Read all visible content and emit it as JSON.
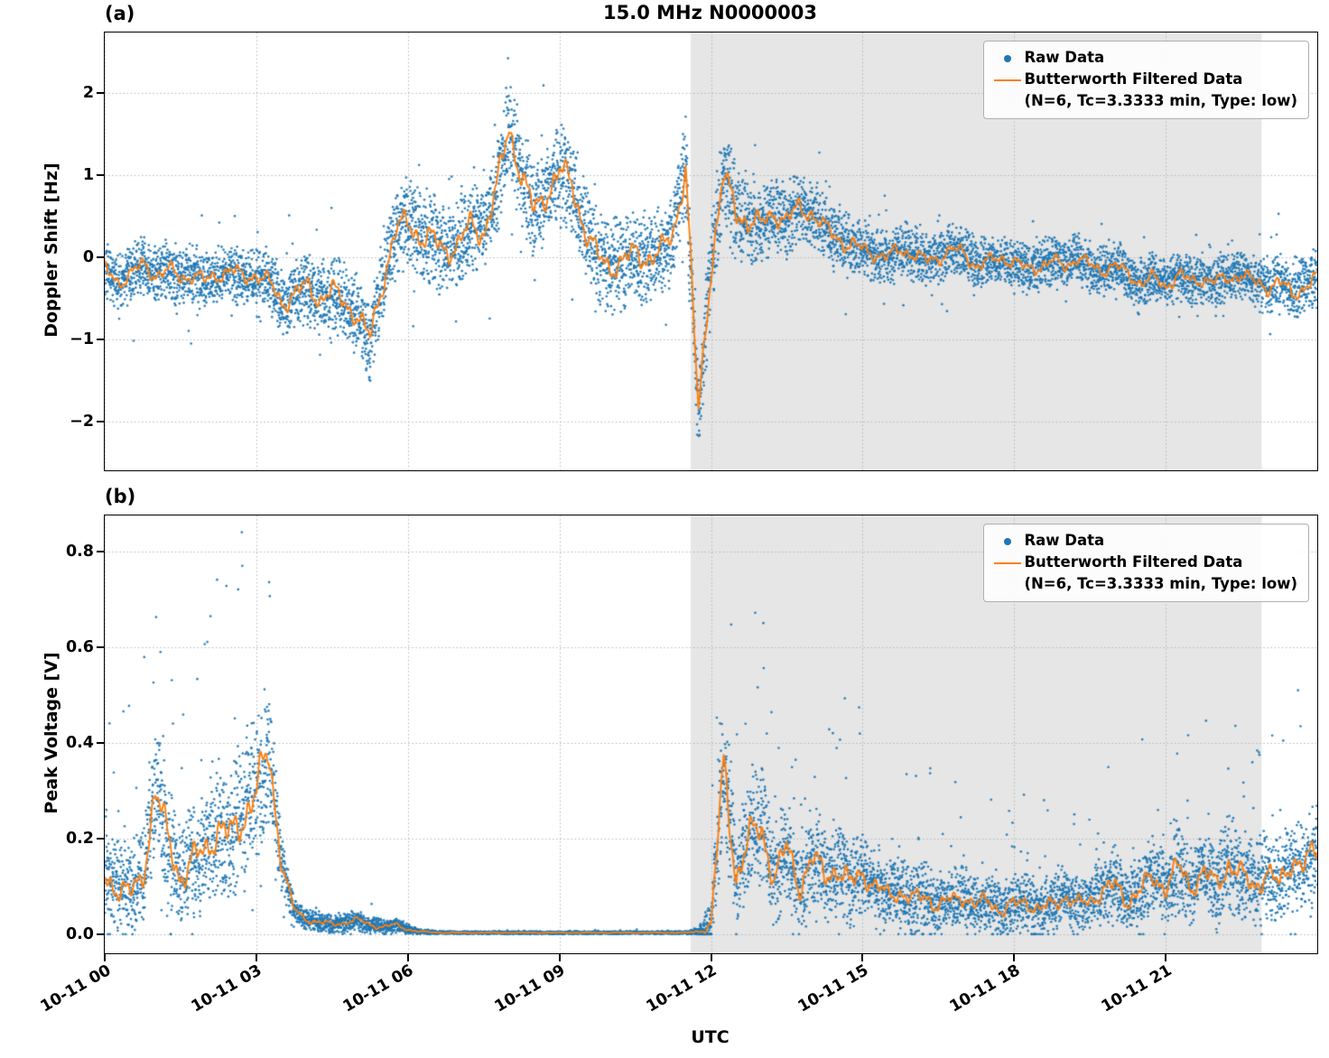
{
  "figure": {
    "title": "15.0 MHz N0000003",
    "xlabel": "UTC",
    "panel_a_tag": "(a)",
    "panel_b_tag": "(b)"
  },
  "legend": {
    "raw_label": "Raw Data",
    "filtered_label": "Butterworth Filtered Data",
    "filtered_sublabel": "(N=6, Tc=3.3333 min, Type: low)"
  },
  "colors": {
    "raw": "#1f77b4",
    "filtered": "#ff7f0e",
    "shade": "#e6e6e6",
    "grid": "#b5b5b5",
    "spine": "#000000"
  },
  "chart_data": [
    {
      "type": "scatter+line",
      "panel": "a",
      "title": "15.0 MHz N0000003",
      "ylabel": "Doppler Shift [Hz]",
      "xlabel": "UTC",
      "xlim": [
        0,
        24
      ],
      "ylim": [
        -2.59,
        2.74
      ],
      "x_tick_values": [
        0,
        3,
        6,
        9,
        12,
        15,
        18,
        21
      ],
      "x_tick_labels": [
        "10-11 00",
        "10-11 03",
        "10-11 06",
        "10-11 09",
        "10-11 12",
        "10-11 15",
        "10-11 18",
        "10-11 21"
      ],
      "y_tick_values": [
        -2,
        -1,
        0,
        1,
        2
      ],
      "y_tick_labels": [
        "−2",
        "−1",
        "0",
        "1",
        "2"
      ],
      "shaded_span": [
        11.6,
        22.9
      ],
      "grid": true,
      "legend_position": "upper right",
      "series": [
        {
          "name": "Raw Data",
          "type": "scatter",
          "color": "#1f77b4"
        },
        {
          "name": "Butterworth Filtered Data (N=6, Tc=3.3333 min, Type: low)",
          "type": "line",
          "color": "#ff7f0e"
        }
      ],
      "x_hours": [
        0,
        0.25,
        0.5,
        0.75,
        1,
        1.25,
        1.5,
        1.75,
        2,
        2.25,
        2.5,
        2.75,
        3,
        3.25,
        3.5,
        3.75,
        4,
        4.25,
        4.5,
        4.75,
        5,
        5.25,
        5.5,
        5.75,
        6,
        6.25,
        6.5,
        6.75,
        7,
        7.25,
        7.5,
        7.75,
        8,
        8.25,
        8.5,
        8.75,
        9,
        9.25,
        9.5,
        9.75,
        10,
        10.25,
        10.5,
        10.75,
        11,
        11.25,
        11.5,
        11.75,
        12,
        12.25,
        12.5,
        12.75,
        13,
        13.25,
        13.5,
        13.75,
        14,
        14.25,
        14.5,
        14.75,
        15,
        15.25,
        15.5,
        15.75,
        16,
        16.25,
        16.5,
        16.75,
        17,
        17.25,
        17.5,
        17.75,
        18,
        18.25,
        18.5,
        18.75,
        19,
        19.25,
        19.5,
        19.75,
        20,
        20.25,
        20.5,
        20.75,
        21,
        21.25,
        21.5,
        21.75,
        22,
        22.25,
        22.5,
        22.75,
        23,
        23.25,
        23.5,
        23.75,
        24
      ],
      "filtered_hz": [
        -0.15,
        -0.3,
        -0.2,
        -0.1,
        -0.2,
        -0.15,
        -0.25,
        -0.2,
        -0.3,
        -0.2,
        -0.15,
        -0.25,
        -0.2,
        -0.3,
        -0.55,
        -0.45,
        -0.35,
        -0.5,
        -0.4,
        -0.55,
        -0.7,
        -1.0,
        -0.3,
        0.3,
        0.45,
        0.25,
        0.2,
        0.1,
        0.15,
        0.4,
        0.3,
        0.8,
        1.6,
        1.0,
        0.55,
        0.8,
        1.05,
        0.9,
        0.35,
        0.0,
        -0.1,
        -0.05,
        0.05,
        0.0,
        0.05,
        0.3,
        1.1,
        -1.9,
        -0.1,
        1.0,
        0.55,
        0.45,
        0.4,
        0.55,
        0.45,
        0.6,
        0.55,
        0.35,
        0.25,
        0.15,
        0.1,
        0.05,
        0.0,
        0.1,
        0.05,
        -0.05,
        0.0,
        0.1,
        0.05,
        -0.1,
        -0.05,
        0.0,
        -0.05,
        -0.15,
        -0.1,
        -0.05,
        -0.1,
        0.0,
        -0.1,
        -0.15,
        -0.1,
        -0.2,
        -0.3,
        -0.25,
        -0.35,
        -0.2,
        -0.3,
        -0.25,
        -0.3,
        -0.25,
        -0.2,
        -0.3,
        -0.35,
        -0.3,
        -0.45,
        -0.35,
        -0.25
      ],
      "raw_band_halfwidth_hz": [
        0.35,
        0.35,
        0.35,
        0.35,
        0.35,
        0.35,
        0.35,
        0.35,
        0.35,
        0.35,
        0.35,
        0.35,
        0.35,
        0.35,
        0.45,
        0.45,
        0.45,
        0.45,
        0.45,
        0.45,
        0.5,
        0.55,
        0.5,
        0.55,
        0.55,
        0.55,
        0.55,
        0.55,
        0.55,
        0.55,
        0.55,
        0.6,
        0.6,
        0.6,
        0.6,
        0.6,
        0.6,
        0.6,
        0.6,
        0.55,
        0.55,
        0.55,
        0.55,
        0.55,
        0.55,
        0.55,
        0.6,
        0.5,
        0.6,
        0.55,
        0.6,
        0.55,
        0.45,
        0.45,
        0.45,
        0.45,
        0.4,
        0.4,
        0.4,
        0.4,
        0.32,
        0.32,
        0.32,
        0.32,
        0.32,
        0.32,
        0.32,
        0.32,
        0.3,
        0.3,
        0.3,
        0.3,
        0.3,
        0.3,
        0.3,
        0.3,
        0.3,
        0.3,
        0.3,
        0.3,
        0.3,
        0.3,
        0.3,
        0.3,
        0.3,
        0.3,
        0.3,
        0.3,
        0.3,
        0.3,
        0.3,
        0.3,
        0.35,
        0.35,
        0.35,
        0.35,
        0.35
      ]
    },
    {
      "type": "scatter+line",
      "panel": "b",
      "ylabel": "Peak Voltage [V]",
      "xlabel": "UTC",
      "xlim": [
        0,
        24
      ],
      "ylim": [
        -0.04,
        0.875
      ],
      "value_min": 0,
      "x_tick_values": [
        0,
        3,
        6,
        9,
        12,
        15,
        18,
        21
      ],
      "x_tick_labels": [
        "10-11 00",
        "10-11 03",
        "10-11 06",
        "10-11 09",
        "10-11 12",
        "10-11 15",
        "10-11 18",
        "10-11 21"
      ],
      "y_tick_values": [
        0,
        0.2,
        0.4,
        0.6,
        0.8
      ],
      "y_tick_labels": [
        "0.0",
        "0.2",
        "0.4",
        "0.6",
        "0.8"
      ],
      "shaded_span": [
        11.6,
        22.9
      ],
      "grid": true,
      "legend_position": "upper right",
      "series": [
        {
          "name": "Raw Data",
          "type": "scatter",
          "color": "#1f77b4"
        },
        {
          "name": "Butterworth Filtered Data (N=6, Tc=3.3333 min, Type: low)",
          "type": "line",
          "color": "#ff7f0e"
        }
      ],
      "x_hours": [
        0,
        0.25,
        0.5,
        0.75,
        1,
        1.25,
        1.5,
        1.75,
        2,
        2.25,
        2.5,
        2.75,
        3,
        3.25,
        3.5,
        3.75,
        4,
        4.25,
        4.5,
        4.75,
        5,
        5.25,
        5.5,
        5.75,
        6,
        6.25,
        6.5,
        6.75,
        7,
        7.25,
        7.5,
        7.75,
        8,
        8.25,
        8.5,
        8.75,
        9,
        9.25,
        9.5,
        9.75,
        10,
        10.25,
        10.5,
        10.75,
        11,
        11.25,
        11.5,
        11.75,
        12,
        12.25,
        12.5,
        12.75,
        13,
        13.25,
        13.5,
        13.75,
        14,
        14.25,
        14.5,
        14.75,
        15,
        15.25,
        15.5,
        15.75,
        16,
        16.25,
        16.5,
        16.75,
        17,
        17.25,
        17.5,
        17.75,
        18,
        18.25,
        18.5,
        18.75,
        19,
        19.25,
        19.5,
        19.75,
        20,
        20.25,
        20.5,
        20.75,
        21,
        21.25,
        21.5,
        21.75,
        22,
        22.25,
        22.5,
        22.75,
        23,
        23.25,
        23.5,
        23.75,
        24
      ],
      "filtered_v": [
        0.12,
        0.1,
        0.08,
        0.12,
        0.3,
        0.2,
        0.12,
        0.15,
        0.18,
        0.22,
        0.2,
        0.25,
        0.3,
        0.38,
        0.15,
        0.05,
        0.03,
        0.025,
        0.02,
        0.025,
        0.03,
        0.02,
        0.015,
        0.02,
        0.01,
        0.005,
        0.004,
        0.003,
        0.003,
        0.003,
        0.003,
        0.003,
        0.003,
        0.003,
        0.003,
        0.003,
        0.003,
        0.003,
        0.003,
        0.003,
        0.003,
        0.003,
        0.003,
        0.003,
        0.003,
        0.003,
        0.003,
        0.005,
        0.02,
        0.35,
        0.12,
        0.2,
        0.22,
        0.12,
        0.18,
        0.1,
        0.16,
        0.12,
        0.14,
        0.1,
        0.13,
        0.1,
        0.08,
        0.09,
        0.07,
        0.08,
        0.06,
        0.07,
        0.08,
        0.06,
        0.07,
        0.05,
        0.06,
        0.07,
        0.05,
        0.06,
        0.08,
        0.06,
        0.07,
        0.09,
        0.1,
        0.07,
        0.09,
        0.12,
        0.1,
        0.14,
        0.1,
        0.13,
        0.1,
        0.15,
        0.12,
        0.1,
        0.13,
        0.1,
        0.16,
        0.14,
        0.18
      ],
      "raw_band_halfwidth_v": [
        0.1,
        0.1,
        0.1,
        0.1,
        0.15,
        0.12,
        0.12,
        0.12,
        0.12,
        0.13,
        0.15,
        0.15,
        0.15,
        0.15,
        0.06,
        0.03,
        0.02,
        0.02,
        0.02,
        0.02,
        0.02,
        0.02,
        0.015,
        0.015,
        0.01,
        0.006,
        0.004,
        0.003,
        0.003,
        0.003,
        0.003,
        0.003,
        0.003,
        0.003,
        0.003,
        0.003,
        0.003,
        0.003,
        0.003,
        0.003,
        0.003,
        0.003,
        0.003,
        0.003,
        0.003,
        0.003,
        0.003,
        0.01,
        0.05,
        0.15,
        0.12,
        0.12,
        0.12,
        0.1,
        0.1,
        0.1,
        0.1,
        0.1,
        0.1,
        0.1,
        0.08,
        0.08,
        0.07,
        0.07,
        0.07,
        0.07,
        0.06,
        0.06,
        0.06,
        0.06,
        0.06,
        0.06,
        0.06,
        0.06,
        0.06,
        0.06,
        0.06,
        0.06,
        0.06,
        0.07,
        0.08,
        0.07,
        0.08,
        0.08,
        0.08,
        0.09,
        0.08,
        0.09,
        0.09,
        0.1,
        0.09,
        0.09,
        0.09,
        0.09,
        0.1,
        0.1,
        0.1
      ]
    }
  ]
}
